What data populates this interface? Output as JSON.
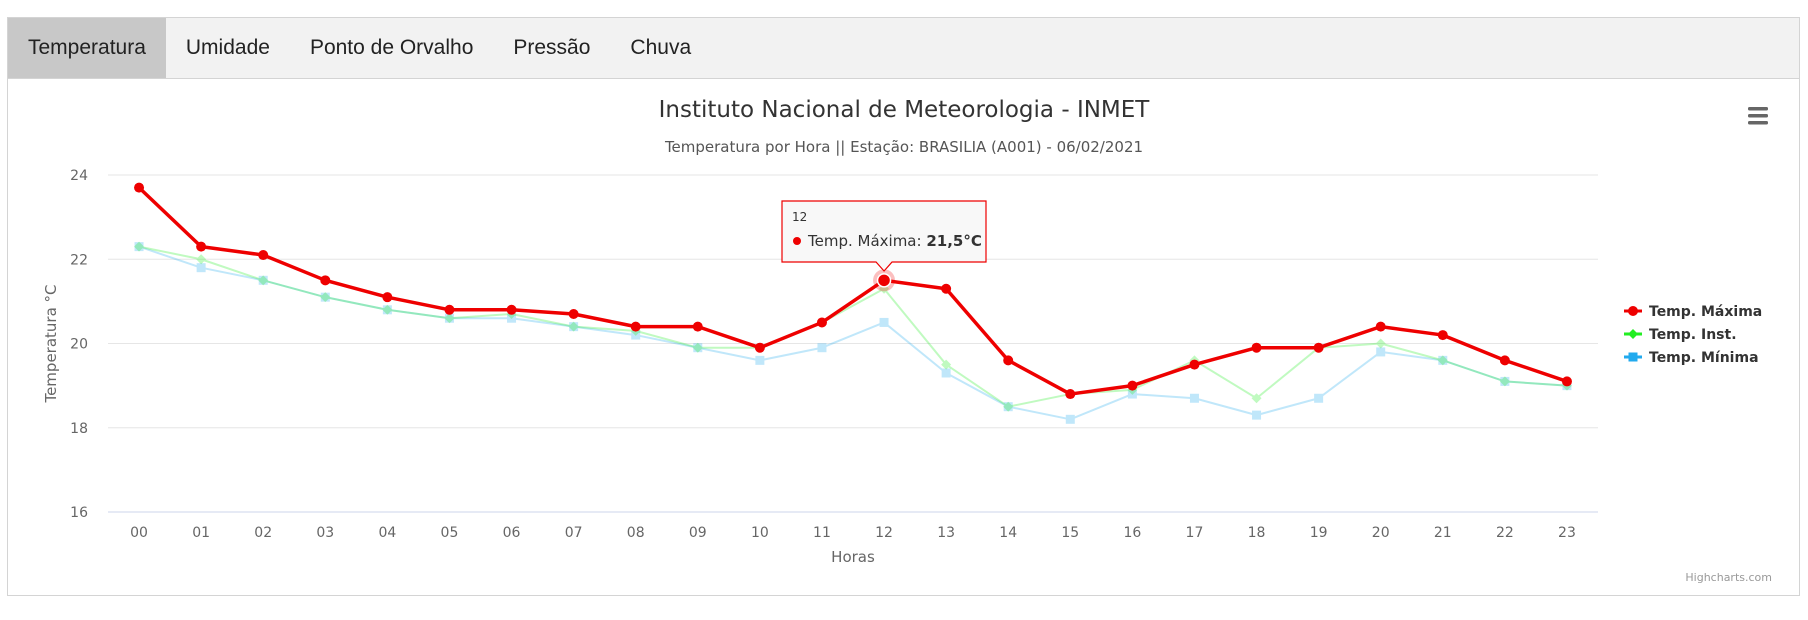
{
  "tabs": [
    {
      "label": "Temperatura",
      "active": true
    },
    {
      "label": "Umidade",
      "active": false
    },
    {
      "label": "Ponto de Orvalho",
      "active": false
    },
    {
      "label": "Pressão",
      "active": false
    },
    {
      "label": "Chuva",
      "active": false
    }
  ],
  "menu_icon": "hamburger-menu-icon",
  "credits": "Highcharts.com",
  "chart_data": {
    "type": "line",
    "title": "Instituto Nacional de Meteorologia - INMET",
    "subtitle": "Temperatura por Hora || Estação: BRASILIA (A001) - 06/02/2021",
    "xlabel": "Horas",
    "ylabel": "Temperatura °C",
    "categories": [
      "00",
      "01",
      "02",
      "03",
      "04",
      "05",
      "06",
      "07",
      "08",
      "09",
      "10",
      "11",
      "12",
      "13",
      "14",
      "15",
      "16",
      "17",
      "18",
      "19",
      "20",
      "21",
      "22",
      "23"
    ],
    "ylim": [
      16,
      24
    ],
    "yticks": [
      "16",
      "18",
      "20",
      "22",
      "24"
    ],
    "grid": true,
    "legend_position": "right",
    "series": [
      {
        "name": "Temp. Máxima",
        "color": "#ee0000",
        "marker": "circle",
        "values": [
          23.7,
          22.3,
          22.1,
          21.5,
          21.1,
          20.8,
          20.8,
          20.7,
          20.4,
          20.4,
          19.9,
          20.5,
          21.5,
          21.3,
          19.6,
          18.8,
          19.0,
          19.5,
          19.9,
          19.9,
          20.4,
          20.2,
          19.6,
          19.1
        ]
      },
      {
        "name": "Temp. Inst.",
        "color": "#22ee22",
        "marker": "diamond",
        "values": [
          22.3,
          22.0,
          21.5,
          21.1,
          20.8,
          20.6,
          20.7,
          20.4,
          20.3,
          19.9,
          19.9,
          20.5,
          21.3,
          19.5,
          18.5,
          18.8,
          18.9,
          19.6,
          18.7,
          19.9,
          20.0,
          19.6,
          19.1,
          19.0
        ]
      },
      {
        "name": "Temp. Mínima",
        "color": "#22aaee",
        "marker": "square",
        "values": [
          22.3,
          21.8,
          21.5,
          21.1,
          20.8,
          20.6,
          20.6,
          20.4,
          20.2,
          19.9,
          19.6,
          19.9,
          20.5,
          19.3,
          18.5,
          18.2,
          18.8,
          18.7,
          18.3,
          18.7,
          19.8,
          19.6,
          19.1,
          19.0
        ]
      }
    ],
    "tooltip": {
      "category": "12",
      "series": "Temp. Máxima",
      "label": "Temp. Máxima: ",
      "value_text": "21,5°C",
      "value": 21.5
    }
  }
}
